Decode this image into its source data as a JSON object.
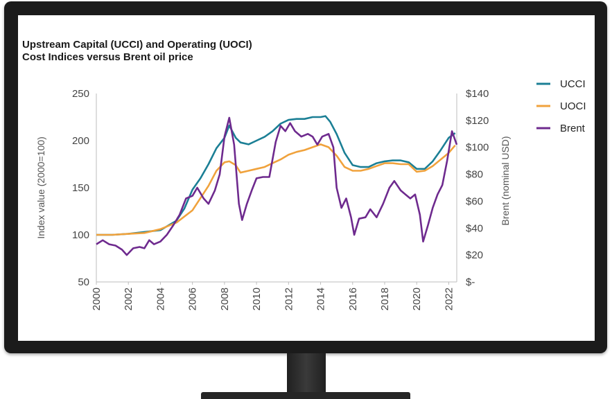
{
  "chart_data": {
    "type": "line",
    "title": "Upstream Capital (UCCI) and Operating (UOCI)",
    "subtitle": "Cost Indices versus Brent oil price",
    "ylabel_left": "Index value (2000=100)",
    "ylabel_right": "Brent (nominal USD)",
    "ylim_left": [
      50,
      250
    ],
    "ylim_right": [
      0,
      140
    ],
    "xlim": [
      2000,
      2022.5
    ],
    "y_ticks_left": [
      "250",
      "200",
      "150",
      "100",
      "50"
    ],
    "y_ticks_right": [
      "$140",
      "$120",
      "$100",
      "$80",
      "$60",
      "$40",
      "$20",
      "$-"
    ],
    "x_ticks": [
      "2000",
      "2002",
      "2004",
      "2006",
      "2008",
      "2010",
      "2012",
      "2014",
      "2016",
      "2018",
      "2020",
      "2022"
    ],
    "legend_position": "top-right",
    "series": [
      {
        "name": "UCCI",
        "axis": "left",
        "color": "#1b7f95",
        "points": [
          [
            2000,
            100
          ],
          [
            2001,
            100
          ],
          [
            2002,
            101
          ],
          [
            2003,
            103
          ],
          [
            2004,
            105
          ],
          [
            2005,
            115
          ],
          [
            2005.5,
            128
          ],
          [
            2006,
            148
          ],
          [
            2006.5,
            160
          ],
          [
            2007,
            175
          ],
          [
            2007.5,
            192
          ],
          [
            2008,
            203
          ],
          [
            2008.3,
            216
          ],
          [
            2008.7,
            203
          ],
          [
            2009,
            198
          ],
          [
            2009.5,
            196
          ],
          [
            2010,
            200
          ],
          [
            2010.5,
            204
          ],
          [
            2011,
            210
          ],
          [
            2011.5,
            218
          ],
          [
            2012,
            222
          ],
          [
            2012.5,
            223
          ],
          [
            2013,
            223
          ],
          [
            2013.5,
            225
          ],
          [
            2014,
            225
          ],
          [
            2014.3,
            226
          ],
          [
            2014.6,
            220
          ],
          [
            2015,
            207
          ],
          [
            2015.5,
            187
          ],
          [
            2016,
            174
          ],
          [
            2016.5,
            172
          ],
          [
            2017,
            172
          ],
          [
            2017.5,
            176
          ],
          [
            2018,
            178
          ],
          [
            2018.5,
            179
          ],
          [
            2019,
            179
          ],
          [
            2019.5,
            177
          ],
          [
            2020,
            170
          ],
          [
            2020.5,
            170
          ],
          [
            2021,
            178
          ],
          [
            2021.5,
            190
          ],
          [
            2022,
            203
          ],
          [
            2022.4,
            208
          ]
        ]
      },
      {
        "name": "UOCI",
        "axis": "left",
        "color": "#f0a23c",
        "points": [
          [
            2000,
            100
          ],
          [
            2001,
            100
          ],
          [
            2002,
            101
          ],
          [
            2003,
            102
          ],
          [
            2004,
            106
          ],
          [
            2005,
            113
          ],
          [
            2006,
            126
          ],
          [
            2007,
            152
          ],
          [
            2007.5,
            168
          ],
          [
            2008,
            177
          ],
          [
            2008.3,
            178
          ],
          [
            2008.7,
            174
          ],
          [
            2009,
            166
          ],
          [
            2009.5,
            168
          ],
          [
            2010,
            170
          ],
          [
            2010.5,
            172
          ],
          [
            2011,
            176
          ],
          [
            2011.5,
            180
          ],
          [
            2012,
            185
          ],
          [
            2012.5,
            188
          ],
          [
            2013,
            190
          ],
          [
            2013.5,
            193
          ],
          [
            2014,
            196
          ],
          [
            2014.5,
            193
          ],
          [
            2015,
            184
          ],
          [
            2015.5,
            172
          ],
          [
            2016,
            168
          ],
          [
            2016.5,
            168
          ],
          [
            2017,
            170
          ],
          [
            2017.5,
            173
          ],
          [
            2018,
            176
          ],
          [
            2018.5,
            176
          ],
          [
            2019,
            175
          ],
          [
            2019.5,
            175
          ],
          [
            2020,
            167
          ],
          [
            2020.5,
            168
          ],
          [
            2021,
            173
          ],
          [
            2021.5,
            180
          ],
          [
            2022,
            187
          ],
          [
            2022.4,
            195
          ]
        ]
      },
      {
        "name": "Brent",
        "axis": "right",
        "color": "#6e2a8e",
        "points": [
          [
            2000,
            28
          ],
          [
            2000.4,
            31
          ],
          [
            2000.8,
            28
          ],
          [
            2001.2,
            27
          ],
          [
            2001.6,
            24
          ],
          [
            2001.9,
            20
          ],
          [
            2002.3,
            25
          ],
          [
            2002.7,
            26
          ],
          [
            2003,
            25
          ],
          [
            2003.3,
            31
          ],
          [
            2003.6,
            28
          ],
          [
            2004,
            30
          ],
          [
            2004.4,
            35
          ],
          [
            2004.8,
            42
          ],
          [
            2005.2,
            50
          ],
          [
            2005.6,
            62
          ],
          [
            2006,
            64
          ],
          [
            2006.3,
            70
          ],
          [
            2006.7,
            62
          ],
          [
            2007,
            58
          ],
          [
            2007.4,
            68
          ],
          [
            2007.7,
            80
          ],
          [
            2008,
            108
          ],
          [
            2008.3,
            122
          ],
          [
            2008.6,
            102
          ],
          [
            2008.9,
            58
          ],
          [
            2009.1,
            46
          ],
          [
            2009.4,
            58
          ],
          [
            2009.7,
            68
          ],
          [
            2010,
            77
          ],
          [
            2010.4,
            78
          ],
          [
            2010.8,
            78
          ],
          [
            2011.2,
            104
          ],
          [
            2011.5,
            116
          ],
          [
            2011.8,
            112
          ],
          [
            2012.1,
            118
          ],
          [
            2012.4,
            112
          ],
          [
            2012.8,
            108
          ],
          [
            2013.2,
            110
          ],
          [
            2013.5,
            108
          ],
          [
            2013.8,
            102
          ],
          [
            2014.1,
            108
          ],
          [
            2014.5,
            110
          ],
          [
            2014.8,
            100
          ],
          [
            2015,
            70
          ],
          [
            2015.3,
            55
          ],
          [
            2015.6,
            62
          ],
          [
            2015.9,
            48
          ],
          [
            2016.1,
            35
          ],
          [
            2016.4,
            47
          ],
          [
            2016.8,
            48
          ],
          [
            2017.1,
            54
          ],
          [
            2017.5,
            48
          ],
          [
            2017.9,
            58
          ],
          [
            2018.3,
            70
          ],
          [
            2018.6,
            75
          ],
          [
            2019,
            68
          ],
          [
            2019.3,
            65
          ],
          [
            2019.6,
            62
          ],
          [
            2019.9,
            65
          ],
          [
            2020.2,
            50
          ],
          [
            2020.4,
            30
          ],
          [
            2020.7,
            42
          ],
          [
            2021,
            55
          ],
          [
            2021.3,
            65
          ],
          [
            2021.6,
            72
          ],
          [
            2021.9,
            90
          ],
          [
            2022.2,
            112
          ],
          [
            2022.5,
            102
          ]
        ]
      }
    ]
  }
}
